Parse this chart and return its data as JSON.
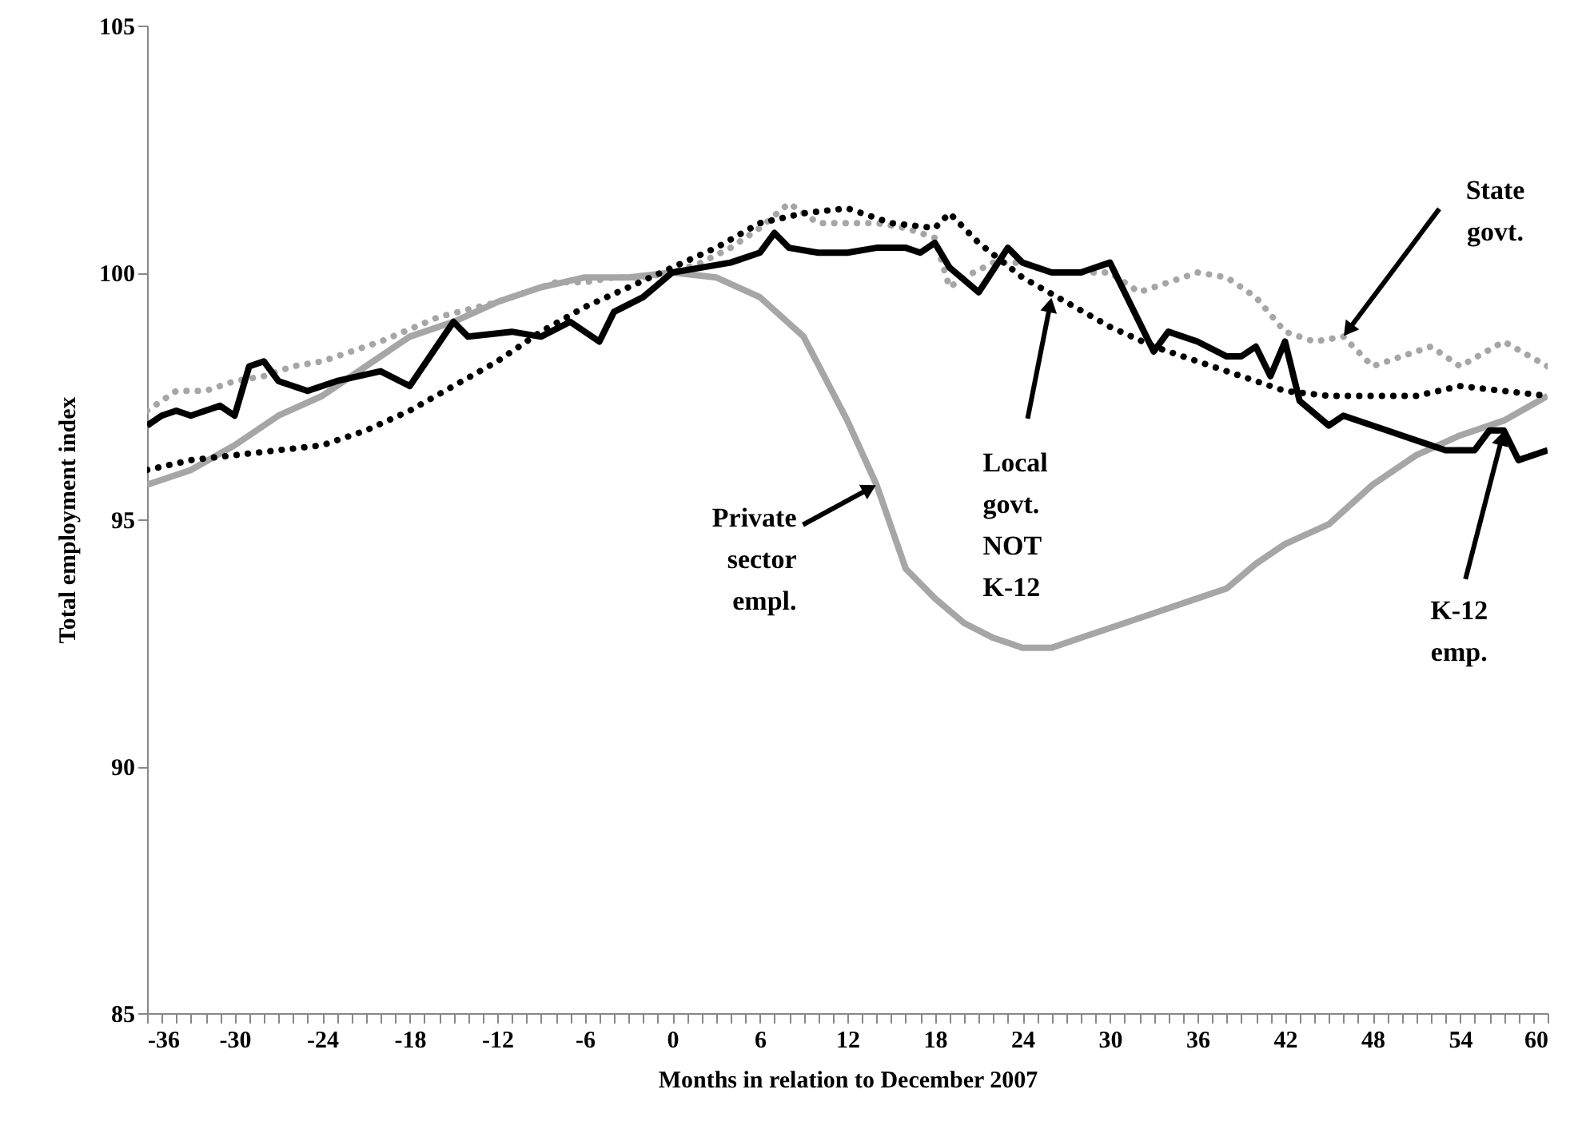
{
  "chart_data": {
    "type": "line",
    "xlabel": "Months in relation to December 2007",
    "ylabel": "Total employment index",
    "xlim": [
      -36,
      60
    ],
    "ylim": [
      85,
      105
    ],
    "yticks": [
      85,
      90,
      95,
      100,
      105
    ],
    "xticks": [
      -36,
      {
        "value": -35,
        "label": null
      },
      {
        "value": -34,
        "label": null
      },
      {
        "value": -33,
        "label": null
      },
      {
        "value": -32,
        "label": null
      },
      {
        "value": -31,
        "label": null
      },
      -30,
      {
        "value": -29,
        "label": null
      },
      {
        "value": -28,
        "label": null
      },
      {
        "value": -27,
        "label": null
      },
      {
        "value": -26,
        "label": null
      },
      {
        "value": -25,
        "label": null
      },
      -24,
      {
        "value": -23,
        "label": null
      },
      {
        "value": -22,
        "label": null
      },
      {
        "value": -21,
        "label": null
      },
      {
        "value": -20,
        "label": null
      },
      {
        "value": -19,
        "label": null
      },
      -18,
      {
        "value": -17,
        "label": null
      },
      {
        "value": -16,
        "label": null
      },
      {
        "value": -15,
        "label": null
      },
      {
        "value": -14,
        "label": null
      },
      {
        "value": -13,
        "label": null
      },
      -12,
      {
        "value": -11,
        "label": null
      },
      {
        "value": -10,
        "label": null
      },
      {
        "value": -9,
        "label": null
      },
      {
        "value": -8,
        "label": null
      },
      {
        "value": -7,
        "label": null
      },
      -6,
      {
        "value": -5,
        "label": null
      },
      {
        "value": -4,
        "label": null
      },
      {
        "value": -3,
        "label": null
      },
      {
        "value": -2,
        "label": null
      },
      {
        "value": -1,
        "label": null
      },
      0,
      {
        "value": 1,
        "label": null
      },
      {
        "value": 2,
        "label": null
      },
      {
        "value": 3,
        "label": null
      },
      {
        "value": 4,
        "label": null
      },
      {
        "value": 5,
        "label": null
      },
      6,
      {
        "value": 7,
        "label": null
      },
      {
        "value": 8,
        "label": null
      },
      {
        "value": 9,
        "label": null
      },
      {
        "value": 10,
        "label": null
      },
      {
        "value": 11,
        "label": null
      },
      12,
      {
        "value": 13,
        "label": null
      },
      {
        "value": 14,
        "label": null
      },
      {
        "value": 15,
        "label": null
      },
      {
        "value": 16,
        "label": null
      },
      {
        "value": 17,
        "label": null
      },
      18,
      {
        "value": 19,
        "label": null
      },
      {
        "value": 20,
        "label": null
      },
      {
        "value": 21,
        "label": null
      },
      {
        "value": 22,
        "label": null
      },
      {
        "value": 23,
        "label": null
      },
      24,
      {
        "value": 25,
        "label": null
      },
      {
        "value": 26,
        "label": null
      },
      {
        "value": 27,
        "label": null
      },
      {
        "value": 28,
        "label": null
      },
      {
        "value": 29,
        "label": null
      },
      30,
      {
        "value": 31,
        "label": null
      },
      {
        "value": 32,
        "label": null
      },
      {
        "value": 33,
        "label": null
      },
      {
        "value": 34,
        "label": null
      },
      {
        "value": 35,
        "label": null
      },
      36,
      {
        "value": 37,
        "label": null
      },
      {
        "value": 38,
        "label": null
      },
      {
        "value": 39,
        "label": null
      },
      {
        "value": 40,
        "label": null
      },
      {
        "value": 41,
        "label": null
      },
      42,
      {
        "value": 43,
        "label": null
      },
      {
        "value": 44,
        "label": null
      },
      {
        "value": 45,
        "label": null
      },
      {
        "value": 46,
        "label": null
      },
      {
        "value": 47,
        "label": null
      },
      48,
      {
        "value": 49,
        "label": null
      },
      {
        "value": 50,
        "label": null
      },
      {
        "value": 51,
        "label": null
      },
      {
        "value": 52,
        "label": null
      },
      {
        "value": 53,
        "label": null
      },
      54,
      {
        "value": 55,
        "label": null
      },
      {
        "value": 56,
        "label": null
      },
      {
        "value": 57,
        "label": null
      },
      {
        "value": 58,
        "label": null
      },
      {
        "value": 59,
        "label": null
      },
      60
    ],
    "series": [
      {
        "color": "#a6a6a6",
        "line_style": "solid",
        "x": [
          -36,
          -33,
          -30,
          -27,
          -24,
          -21,
          -18,
          -15,
          -12,
          -9,
          -6,
          -3,
          0,
          3,
          6,
          9,
          12,
          14,
          16,
          18,
          20,
          22,
          24,
          26,
          28,
          30,
          33,
          36,
          38,
          40,
          42,
          45,
          48,
          51,
          54,
          57,
          60
        ],
        "values": [
          95.7,
          96.0,
          96.5,
          97.1,
          97.5,
          98.1,
          98.7,
          99.0,
          99.4,
          99.7,
          99.9,
          99.9,
          100,
          99.9,
          99.5,
          98.7,
          97.0,
          95.7,
          94.0,
          93.4,
          92.9,
          92.6,
          92.4,
          92.4,
          92.6,
          92.8,
          93.1,
          93.4,
          93.6,
          94.1,
          94.5,
          94.9,
          95.7,
          96.3,
          96.7,
          97.0,
          97.5
        ]
      },
      {
        "color": "#a6a6a6",
        "line_style": "dotted",
        "x": [
          -36,
          -34,
          -32,
          -30,
          -28,
          -26,
          -24,
          -20,
          -16,
          -12,
          -10,
          -8,
          -6,
          -4,
          -2,
          0,
          2,
          4,
          6,
          8,
          10,
          12,
          14,
          16,
          18,
          19,
          20,
          22,
          24,
          26,
          28,
          30,
          32,
          34,
          36,
          38,
          40,
          42,
          44,
          46,
          48,
          50,
          52,
          54,
          57,
          60
        ],
        "values": [
          97.2,
          97.6,
          97.6,
          97.8,
          97.9,
          98.1,
          98.2,
          98.6,
          99.1,
          99.4,
          99.6,
          99.8,
          99.8,
          99.9,
          99.9,
          100,
          100.2,
          100.5,
          100.9,
          101.4,
          101.0,
          101.0,
          101.0,
          100.9,
          100.7,
          99.7,
          99.9,
          100.2,
          100.2,
          100.0,
          100.0,
          100.0,
          99.6,
          99.8,
          100.0,
          99.9,
          99.5,
          98.8,
          98.6,
          98.7,
          98.1,
          98.3,
          98.5,
          98.1,
          98.6,
          98.1
        ]
      },
      {
        "color": "#000000",
        "line_style": "dotted",
        "x": [
          -36,
          -33,
          -30,
          -27,
          -24,
          -21,
          -18,
          -15,
          -12,
          -9,
          -6,
          -3,
          0,
          3,
          6,
          9,
          12,
          15,
          18,
          19,
          21,
          24,
          27,
          30,
          33,
          36,
          39,
          42,
          45,
          48,
          51,
          54,
          57,
          60
        ],
        "values": [
          96.0,
          96.2,
          96.3,
          96.4,
          96.5,
          96.8,
          97.2,
          97.7,
          98.2,
          98.8,
          99.3,
          99.7,
          100.1,
          100.5,
          101.0,
          101.2,
          101.3,
          101.0,
          100.9,
          101.2,
          100.6,
          99.9,
          99.4,
          98.9,
          98.5,
          98.2,
          97.9,
          97.6,
          97.5,
          97.5,
          97.5,
          97.7,
          97.6,
          97.5
        ]
      },
      {
        "color": "#000000",
        "line_style": "solid",
        "x": [
          -36,
          -35,
          -34,
          -33,
          -32,
          -31,
          -30,
          -29,
          -28,
          -27,
          -25,
          -23,
          -20,
          -18,
          -15,
          -14,
          -11,
          -9,
          -7,
          -5,
          -4,
          -2,
          0,
          2,
          4,
          6,
          7,
          8,
          10,
          12,
          14,
          16,
          17,
          18,
          19,
          21,
          23,
          24,
          26,
          28,
          30,
          31,
          33,
          34,
          36,
          38,
          39,
          40,
          41,
          42,
          43,
          45,
          46,
          49,
          50,
          53,
          55,
          56,
          57,
          58,
          60
        ],
        "values": [
          96.9,
          97.1,
          97.2,
          97.1,
          97.2,
          97.3,
          97.1,
          98.1,
          98.2,
          97.8,
          97.6,
          97.8,
          98.0,
          97.7,
          99.0,
          98.7,
          98.8,
          98.7,
          99.0,
          98.6,
          99.2,
          99.5,
          100,
          100.1,
          100.2,
          100.4,
          100.8,
          100.5,
          100.4,
          100.4,
          100.5,
          100.5,
          100.4,
          100.6,
          100.1,
          99.6,
          100.5,
          100.2,
          100.0,
          100.0,
          100.2,
          99.6,
          98.4,
          98.8,
          98.6,
          98.3,
          98.3,
          98.5,
          97.9,
          98.6,
          97.4,
          96.9,
          97.1,
          96.8,
          96.7,
          96.4,
          96.4,
          96.8,
          96.8,
          96.2,
          96.4
        ]
      }
    ],
    "annotations": [
      {
        "text": "Private sector empl.",
        "x": 14,
        "y": 95.7
      },
      {
        "text": "Local govt. NOT K-12",
        "x": 26,
        "y": 99.5
      },
      {
        "text": "State govt.",
        "x": 46,
        "y": 98.7
      },
      {
        "text": "K-12 emp.",
        "x": 57,
        "y": 96.8
      }
    ]
  }
}
